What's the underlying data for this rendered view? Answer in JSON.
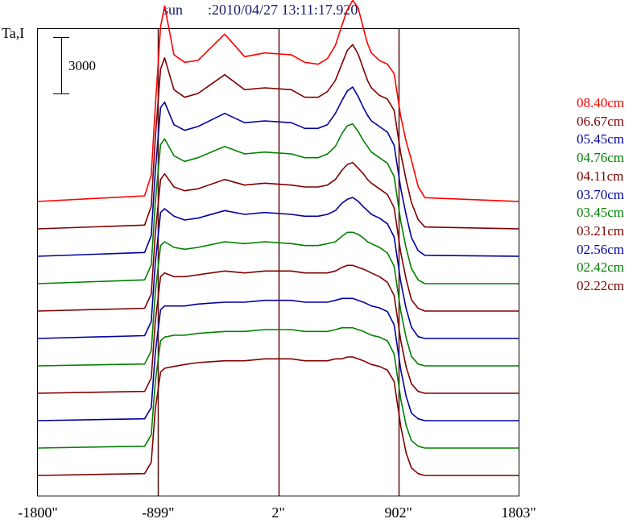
{
  "title": {
    "object": "sun",
    "timestamp": ":2010/04/27 13:11:17.920"
  },
  "chart_data": {
    "type": "line",
    "ylabel": "Ta,I",
    "scale_bar_label": "3000",
    "xlim": [
      -1800,
      1803
    ],
    "x_ticks": [
      "-1800\"",
      "-899\"",
      "2\"",
      "902\"",
      "1803\""
    ],
    "x_tick_values": [
      -1800,
      -899,
      2,
      902,
      1803
    ],
    "vertical_lines": [
      -899,
      2,
      902
    ],
    "x": [
      -1800,
      -1000,
      -950,
      -920,
      -880,
      -850,
      -780,
      -700,
      -600,
      -400,
      -250,
      -100,
      100,
      200,
      300,
      370,
      430,
      480,
      520,
      560,
      600,
      640,
      670,
      700,
      760,
      820,
      870,
      920,
      960,
      1000,
      1050,
      1100,
      1803
    ],
    "series": [
      {
        "name": "08.40cm",
        "color": "#ff0000",
        "offset": 10,
        "values": [
          0,
          300,
          1400,
          5000,
          9300,
          10400,
          7800,
          7400,
          7500,
          8900,
          7700,
          7900,
          7800,
          7400,
          7300,
          7600,
          8300,
          9400,
          10200,
          10700,
          10300,
          9200,
          8400,
          7900,
          7500,
          7300,
          6800,
          4500,
          3200,
          2200,
          800,
          200,
          0
        ]
      },
      {
        "name": "06.67cm",
        "color": "#800000",
        "offset": 9,
        "values": [
          0,
          200,
          1200,
          4800,
          8500,
          9100,
          7400,
          7000,
          7200,
          8200,
          7400,
          7500,
          7400,
          7000,
          7000,
          7300,
          7900,
          8800,
          9500,
          9800,
          9300,
          8500,
          7900,
          7500,
          7100,
          6900,
          6300,
          4000,
          2600,
          1400,
          500,
          100,
          0
        ]
      },
      {
        "name": "05.45cm",
        "color": "#0000a0",
        "offset": 8,
        "values": [
          0,
          200,
          1100,
          4500,
          7900,
          8200,
          7000,
          6700,
          6900,
          7600,
          7100,
          7200,
          7100,
          6800,
          6800,
          7000,
          7600,
          8300,
          8800,
          9000,
          8500,
          7900,
          7500,
          7200,
          6900,
          6600,
          5900,
          3600,
          2200,
          1000,
          300,
          50,
          0
        ]
      },
      {
        "name": "04.76cm",
        "color": "#008000",
        "offset": 7,
        "values": [
          0,
          200,
          1000,
          4300,
          7400,
          7700,
          6800,
          6500,
          6700,
          7300,
          6900,
          7000,
          6900,
          6700,
          6700,
          6900,
          7300,
          8000,
          8400,
          8500,
          8100,
          7600,
          7300,
          7000,
          6700,
          6400,
          5700,
          3300,
          1900,
          800,
          200,
          0,
          0
        ]
      },
      {
        "name": "04.11cm",
        "color": "#800000",
        "offset": 6,
        "values": [
          0,
          150,
          900,
          4100,
          7000,
          7300,
          6600,
          6400,
          6500,
          7000,
          6700,
          6800,
          6700,
          6600,
          6600,
          6700,
          7000,
          7500,
          7800,
          7900,
          7600,
          7300,
          7000,
          6800,
          6500,
          6200,
          5500,
          3100,
          1700,
          600,
          150,
          0,
          0
        ]
      },
      {
        "name": "03.70cm",
        "color": "#0000a0",
        "offset": 5,
        "values": [
          0,
          150,
          900,
          4000,
          6700,
          6900,
          6500,
          6300,
          6400,
          6800,
          6600,
          6700,
          6600,
          6500,
          6500,
          6600,
          6800,
          7200,
          7400,
          7500,
          7300,
          7000,
          6800,
          6600,
          6400,
          6100,
          5400,
          3000,
          1600,
          600,
          100,
          0,
          0
        ]
      },
      {
        "name": "03.45cm",
        "color": "#008000",
        "offset": 4,
        "values": [
          0,
          100,
          800,
          3900,
          6400,
          6600,
          6300,
          6200,
          6300,
          6600,
          6500,
          6600,
          6500,
          6400,
          6400,
          6500,
          6600,
          6900,
          7100,
          7100,
          7000,
          6800,
          6600,
          6500,
          6300,
          6000,
          5300,
          2900,
          1500,
          500,
          100,
          0,
          0
        ]
      },
      {
        "name": "03.21cm",
        "color": "#800000",
        "offset": 3,
        "values": [
          0,
          100,
          800,
          3800,
          6200,
          6400,
          6200,
          6200,
          6300,
          6500,
          6400,
          6500,
          6500,
          6400,
          6400,
          6400,
          6500,
          6700,
          6800,
          6800,
          6700,
          6600,
          6500,
          6400,
          6200,
          5900,
          5200,
          2800,
          1400,
          500,
          100,
          0,
          0
        ]
      },
      {
        "name": "02.56cm",
        "color": "#0000a0",
        "offset": 2,
        "values": [
          0,
          100,
          700,
          3600,
          5900,
          6100,
          6100,
          6100,
          6200,
          6300,
          6300,
          6400,
          6400,
          6300,
          6300,
          6300,
          6400,
          6500,
          6500,
          6500,
          6400,
          6300,
          6200,
          6100,
          6000,
          5800,
          5100,
          2700,
          1300,
          400,
          100,
          0,
          0
        ]
      },
      {
        "name": "02.42cm",
        "color": "#008000",
        "offset": 1,
        "values": [
          0,
          100,
          700,
          3500,
          5700,
          5900,
          6000,
          6000,
          6100,
          6200,
          6200,
          6300,
          6300,
          6200,
          6200,
          6200,
          6300,
          6400,
          6400,
          6400,
          6300,
          6200,
          6100,
          6000,
          5900,
          5700,
          5000,
          2600,
          1200,
          400,
          100,
          0,
          0
        ]
      },
      {
        "name": "02.22cm",
        "color": "#800000",
        "offset": 0,
        "values": [
          0,
          100,
          700,
          3500,
          5500,
          5700,
          5800,
          5900,
          6000,
          6100,
          6100,
          6200,
          6200,
          6100,
          6100,
          6100,
          6200,
          6200,
          6300,
          6300,
          6200,
          6100,
          6000,
          5900,
          5800,
          5600,
          5000,
          2600,
          1200,
          400,
          100,
          0,
          0
        ]
      }
    ],
    "grid": false,
    "legend": "right"
  }
}
